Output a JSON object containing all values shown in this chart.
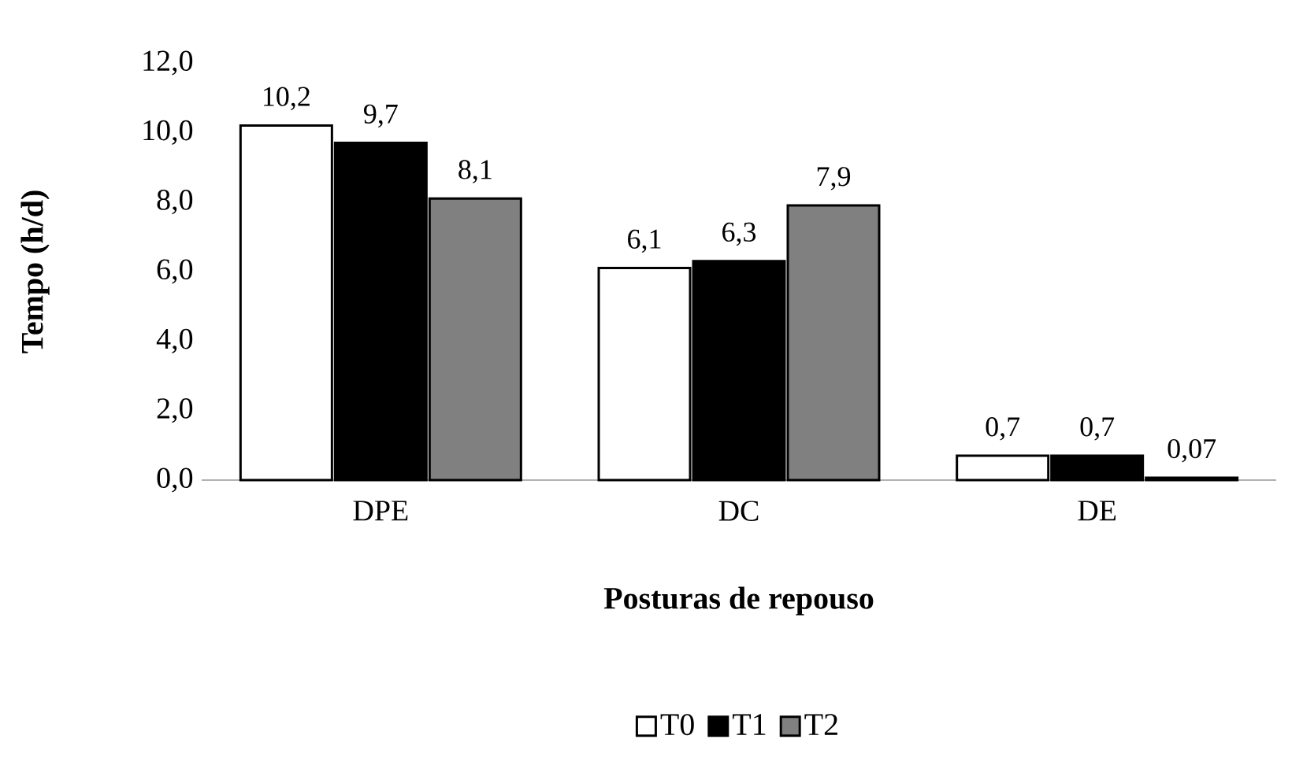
{
  "chart_data": {
    "type": "bar",
    "xlabel": "Posturas de repouso",
    "ylabel": "Tempo (h/d)",
    "categories": [
      "DPE",
      "DC",
      "DE"
    ],
    "series": [
      {
        "name": "T0",
        "color": "#ffffff",
        "values": [
          10.2,
          6.1,
          0.7
        ],
        "value_labels": [
          "10,2",
          "6,1",
          "0,7"
        ]
      },
      {
        "name": "T1",
        "color": "#000000",
        "values": [
          9.7,
          6.3,
          0.7
        ],
        "value_labels": [
          "9,7",
          "6,3",
          "0,7"
        ]
      },
      {
        "name": "T2",
        "color": "#808080",
        "values": [
          8.1,
          7.9,
          0.07
        ],
        "value_labels": [
          "8,1",
          "7,9",
          "0,07"
        ]
      }
    ],
    "ylim": [
      0,
      12
    ],
    "yticks": [
      {
        "value": 0,
        "label": "0,0"
      },
      {
        "value": 2,
        "label": "2,0"
      },
      {
        "value": 4,
        "label": "4,0"
      },
      {
        "value": 6,
        "label": "6,0"
      },
      {
        "value": 8,
        "label": "8,0"
      },
      {
        "value": 10,
        "label": "10,0"
      },
      {
        "value": 12,
        "label": "12,0"
      }
    ],
    "legend": "bottom",
    "grid": false
  }
}
